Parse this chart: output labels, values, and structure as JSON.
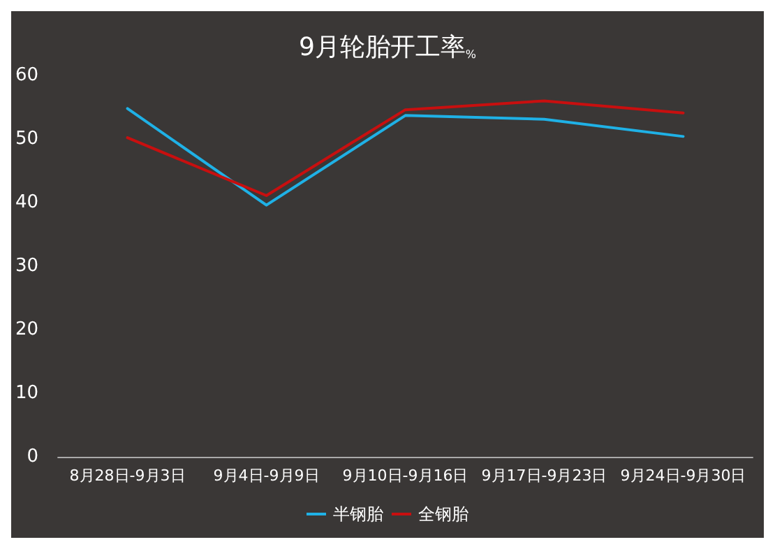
{
  "chart_data": {
    "type": "line",
    "title": "9月轮胎开工率$_{%}$",
    "categories": [
      "8月28日-9月3日",
      "9月4日-9月9日",
      "9月10日-9月16日",
      "9月17日-9月23日",
      "9月24日-9月30日"
    ],
    "series": [
      {
        "name": "半钢胎",
        "color": "#1fb1e6",
        "values": [
          54.8,
          39.6,
          53.7,
          53.1,
          50.4
        ]
      },
      {
        "name": "全钢胎",
        "color": "#c80f0f",
        "values": [
          50.2,
          41.1,
          54.6,
          56,
          54.1
        ]
      }
    ],
    "ylim": [
      0,
      60
    ],
    "yticks": [
      0,
      10,
      20,
      30,
      40,
      50,
      60
    ],
    "grid": false,
    "legend": "bottom",
    "marker": "none",
    "line_style": "solid"
  }
}
